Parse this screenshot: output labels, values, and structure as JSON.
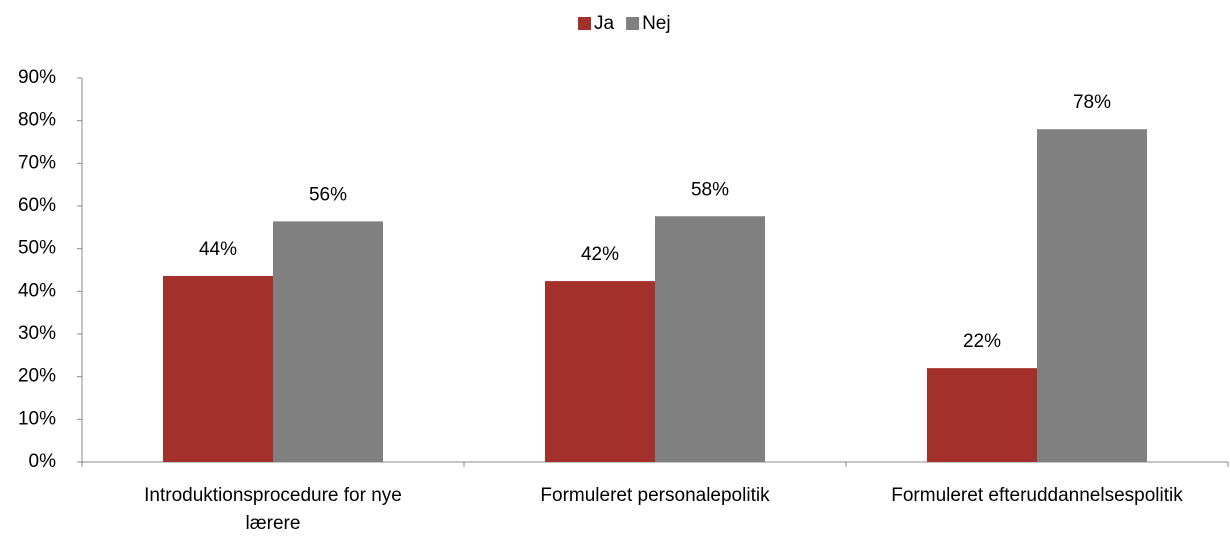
{
  "chart_data": {
    "type": "bar",
    "categories": [
      "Introduktionsprocedure for nye lærere",
      "Formuleret personalepolitik",
      "Formuleret efteruddannelsespolitik"
    ],
    "series": [
      {
        "name": "Ja",
        "color": "#a4302b",
        "values": [
          43.6,
          42.4,
          22
        ],
        "value_labels": [
          "44%",
          "42%",
          "22%"
        ]
      },
      {
        "name": "Nej",
        "color": "#808080",
        "values": [
          56.4,
          57.6,
          78
        ],
        "value_labels": [
          "56%",
          "58%",
          "78%"
        ]
      }
    ],
    "ylim": [
      0,
      90
    ],
    "yticks": [
      {
        "value": 0,
        "label": "0%"
      },
      {
        "value": 10,
        "label": "10%"
      },
      {
        "value": 20,
        "label": "20%"
      },
      {
        "value": 30,
        "label": "30%"
      },
      {
        "value": 40,
        "label": "40%"
      },
      {
        "value": 50,
        "label": "50%"
      },
      {
        "value": 60,
        "label": "60%"
      },
      {
        "value": 70,
        "label": "70%"
      },
      {
        "value": 80,
        "label": "80%"
      },
      {
        "value": 90,
        "label": "90%"
      }
    ],
    "legend": "top",
    "grid": false
  }
}
